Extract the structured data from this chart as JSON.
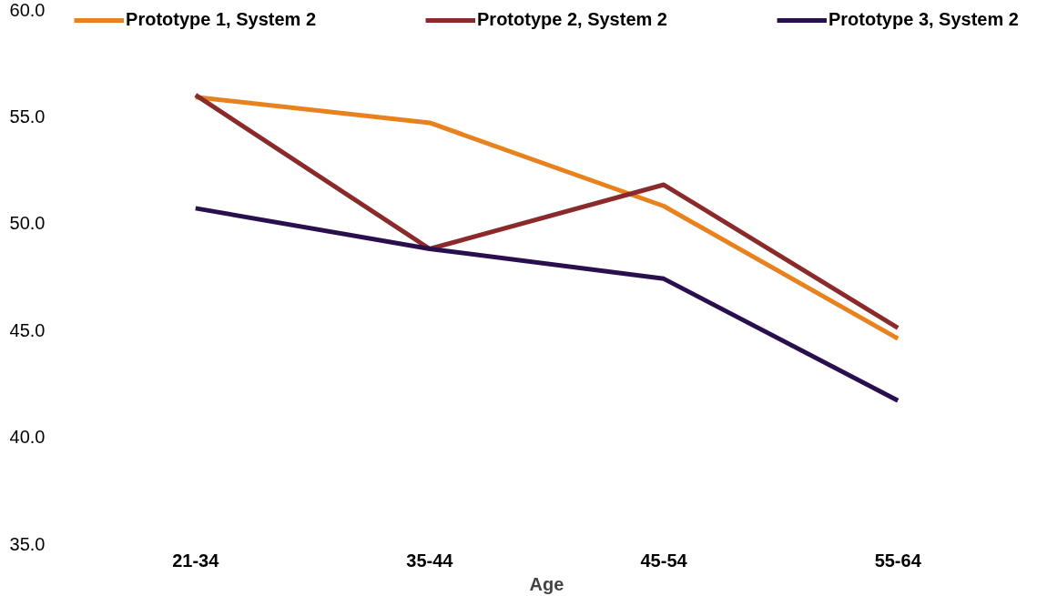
{
  "chart_data": {
    "type": "line",
    "xlabel": "Age",
    "categories": [
      "21-34",
      "35-44",
      "45-54",
      "55-64"
    ],
    "series": [
      {
        "name": "Prototype 1, System 2",
        "color": "#e8821e",
        "values": [
          55.9,
          54.7,
          50.8,
          44.6
        ]
      },
      {
        "name": "Prototype 2, System 2",
        "color": "#8b2a2a",
        "values": [
          56.0,
          48.8,
          51.8,
          45.1
        ]
      },
      {
        "name": "Prototype 3, System 2",
        "color": "#2a0f4f",
        "values": [
          50.7,
          48.8,
          47.4,
          41.7
        ]
      }
    ],
    "ylim": [
      35,
      60
    ],
    "yticks": [
      {
        "value": 35,
        "label": "35.0"
      },
      {
        "value": 40,
        "label": "40.0"
      },
      {
        "value": 45,
        "label": "45.0"
      },
      {
        "value": 50,
        "label": "50.0"
      },
      {
        "value": 55,
        "label": "55.0"
      },
      {
        "value": 60,
        "label": "60.0"
      }
    ],
    "grid": false,
    "legend": "top",
    "marker": "none",
    "line_style": "solid"
  }
}
